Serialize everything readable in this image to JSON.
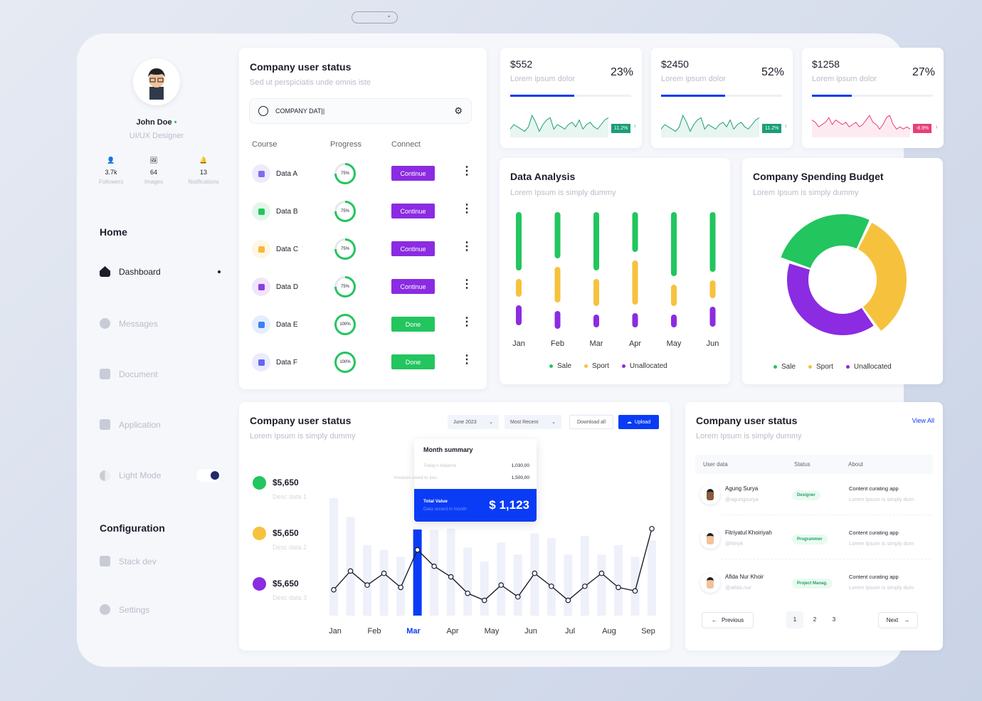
{
  "top_dropdown": {
    "icon": "chevron-down-icon"
  },
  "profile": {
    "name": "John Doe",
    "role": "UI/UX Designer",
    "online_color": "#22c55e",
    "stats": [
      {
        "icon": "user-icon",
        "value": "3.7k",
        "label": "Followers"
      },
      {
        "icon": "image-icon",
        "value": "64",
        "label": "Images"
      },
      {
        "icon": "bell-icon",
        "value": "13",
        "label": "Notifications"
      }
    ]
  },
  "sidebar": {
    "home_heading": "Home",
    "items": [
      {
        "label": "Dashboard",
        "icon": "home-icon",
        "active": true
      },
      {
        "label": "Messages",
        "icon": "message-icon"
      },
      {
        "label": "Document",
        "icon": "document-icon"
      },
      {
        "label": "Application",
        "icon": "grid-icon"
      },
      {
        "label": "Light Mode",
        "icon": "half-circle-icon",
        "toggle": true
      }
    ],
    "config_heading": "Configuration",
    "config_items": [
      {
        "label": "Stack dev",
        "icon": "layers-icon"
      },
      {
        "label": "Settings",
        "icon": "gear-icon"
      }
    ]
  },
  "course_card": {
    "title": "Company user status",
    "subtitle": "Sed ut perspiciatis unde omnis iste",
    "search_value": "COMPANY DAT||",
    "headers": [
      "Course",
      "Progress",
      "Connect"
    ],
    "rows": [
      {
        "name": "Data A",
        "progress": "75%",
        "action": "Continue",
        "color": "#7c6cf0"
      },
      {
        "name": "Data B",
        "progress": "75%",
        "action": "Continue",
        "color": "#22c55e"
      },
      {
        "name": "Data C",
        "progress": "75%",
        "action": "Continue",
        "color": "#f6b93b"
      },
      {
        "name": "Data D",
        "progress": "75%",
        "action": "Continue",
        "color": "#8b3fe0"
      },
      {
        "name": "Data E",
        "progress": "100%",
        "action": "Done",
        "color": "#3b82f6"
      },
      {
        "name": "Data F",
        "progress": "100%",
        "action": "Done",
        "color": "#6366f1"
      }
    ]
  },
  "stat_cards": [
    {
      "amount": "$552",
      "label": "Lorem ipsum dolor",
      "percent": "23%",
      "fill": 0.53,
      "change": "11.2%",
      "trend": "up",
      "color": "#1a9e7a",
      "spark": [
        3,
        5,
        4,
        3,
        2,
        4,
        9,
        6,
        2,
        5,
        7,
        8,
        3,
        5,
        4,
        3,
        5,
        6,
        4,
        7,
        3,
        5,
        6,
        4,
        3,
        5,
        7,
        8
      ]
    },
    {
      "amount": "$2450",
      "label": "Lorem ipsum dolor",
      "percent": "52%",
      "fill": 0.53,
      "change": "11.2%",
      "trend": "up",
      "color": "#1a9e7a",
      "spark": [
        3,
        5,
        4,
        3,
        2,
        4,
        9,
        6,
        2,
        5,
        7,
        8,
        3,
        5,
        4,
        3,
        5,
        6,
        4,
        7,
        3,
        5,
        6,
        4,
        3,
        5,
        7,
        8
      ]
    },
    {
      "amount": "$1258",
      "label": "Lorem ipsum dolor",
      "percent": "27%",
      "fill": 0.33,
      "change": "-8.9%",
      "trend": "down",
      "color": "#e83e7a",
      "spark": [
        7,
        6,
        4,
        5,
        6,
        8,
        5,
        7,
        6,
        5,
        6,
        4,
        5,
        6,
        4,
        5,
        7,
        9,
        6,
        5,
        3,
        5,
        8,
        9,
        5,
        3,
        4,
        3,
        4,
        3
      ]
    }
  ],
  "data_analysis": {
    "title": "Data Analysis",
    "subtitle": "Lorem Ipsum is simply dummy",
    "legend": [
      "Sale",
      "Sport",
      "Unallocated"
    ]
  },
  "spending": {
    "title": "Company Spending Budget",
    "subtitle": "Lorem Ipsum is simply dummy",
    "legend": [
      "Sale",
      "Sport",
      "Unallocated"
    ]
  },
  "summary_card": {
    "title": "Company user status",
    "subtitle": "Lorem Ipsum is simply dummy",
    "month_select": "June 2023",
    "sort_select": "Most Recent",
    "download_label": "Download all",
    "upload_label": "Upload",
    "items": [
      {
        "value": "$5,650",
        "desc": "Desc data 1",
        "color": "#22c55e"
      },
      {
        "value": "$5,650",
        "desc": "Desc data 2",
        "color": "#f6c23e"
      },
      {
        "value": "$5,650",
        "desc": "Desc data 3",
        "color": "#8b2be2"
      }
    ],
    "tooltip": {
      "title": "Month summary",
      "rows": [
        {
          "label": "Today's balance",
          "value": "1,030,00"
        },
        {
          "label": "Invoices owed to you",
          "value": "1,500,00"
        }
      ],
      "total_label": "Total Value",
      "total_sub": "Data record in month",
      "total_value": "$ 1,123"
    }
  },
  "users_card": {
    "title": "Company user status",
    "subtitle": "Lorem Ipsum is simply dummy",
    "view_all": "View All",
    "headers": [
      "User data",
      "Status",
      "About"
    ],
    "rows": [
      {
        "name": "Agung Surya",
        "handle": "@agungsurya",
        "status": "Designer",
        "about": "Content curating app",
        "about_sub": "Lorem Ipsum is simply dum"
      },
      {
        "name": "Fitriyatul Khoiriyah",
        "handle": "@fitriyk",
        "status": "Programmer",
        "about": "Content curating app",
        "about_sub": "Lorem Ipsum is simply dum"
      },
      {
        "name": "Afida Nur Khoir",
        "handle": "@afida.nur",
        "status": "Project Manag.",
        "about": "Content curating app",
        "about_sub": "Lorem Ipsum is simply dum"
      }
    ],
    "pagination": {
      "previous": "Previous",
      "pages": [
        "1",
        "2",
        "3"
      ],
      "current": "1",
      "next": "Next"
    }
  },
  "chart_data": [
    {
      "type": "bar",
      "stacked_segments": true,
      "categories": [
        "Jan",
        "Feb",
        "Mar",
        "Apr",
        "May",
        "Jun"
      ],
      "series": [
        {
          "name": "Sale",
          "color": "#22c55e",
          "values": [
            8.2,
            6.5,
            8.2,
            5.6,
            9,
            8.4
          ]
        },
        {
          "name": "Sport",
          "color": "#f6c23e",
          "values": [
            2.5,
            5,
            3.8,
            6.2,
            3,
            2.5
          ]
        },
        {
          "name": "Unallocated",
          "color": "#8b2be2",
          "values": [
            2.8,
            2.5,
            1.8,
            2,
            1.8,
            2.8
          ]
        }
      ],
      "legend": "bottom"
    },
    {
      "type": "pie",
      "donut": true,
      "labels": [
        "Sale",
        "Sport",
        "Unallocated"
      ],
      "values": [
        27,
        33,
        40
      ],
      "colors": [
        "#22c55e",
        "#f6c23e",
        "#8b2be2"
      ],
      "legend": "bottom"
    },
    {
      "type": "line",
      "categories": [
        "Jan",
        "Feb",
        "Mar",
        "Apr",
        "May",
        "Jun",
        "Jul",
        "Aug",
        "Sep"
      ],
      "highlight": "Mar",
      "y": [
        22,
        38,
        26,
        36,
        24,
        56,
        42,
        33,
        19,
        13,
        26,
        16,
        36,
        25,
        13,
        25,
        36,
        24,
        21,
        74
      ],
      "bars": [
        100,
        84,
        60,
        56,
        50,
        96,
        73,
        74,
        58,
        46,
        62,
        52,
        70,
        66,
        52,
        68,
        52,
        60,
        50,
        64
      ],
      "ylim": [
        0,
        100
      ]
    }
  ]
}
